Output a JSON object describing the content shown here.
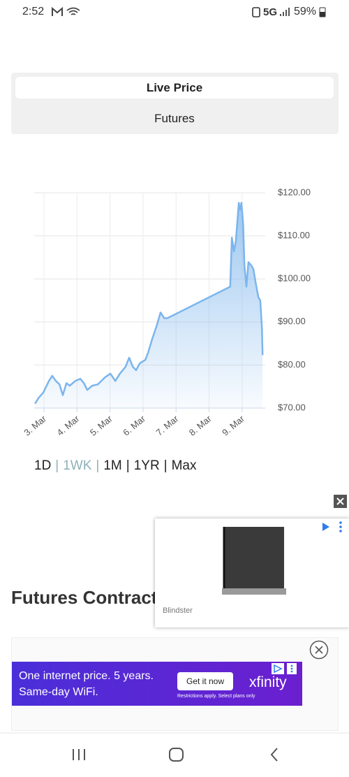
{
  "status_bar": {
    "time": "2:52",
    "network": "5G",
    "battery": "59%"
  },
  "tabs": [
    "Live Price",
    "Futures"
  ],
  "chart_data": {
    "type": "line",
    "area": true,
    "grid": true,
    "color": "#7cb5ec",
    "x": [
      2.73,
      2.83,
      2.98,
      3.15,
      3.25,
      3.36,
      3.47,
      3.57,
      3.68,
      3.78,
      3.95,
      4.1,
      4.21,
      4.31,
      4.46,
      4.63,
      4.84,
      5.01,
      5.16,
      5.3,
      5.47,
      5.58,
      5.69,
      5.79,
      5.9,
      6.07,
      6.15,
      6.28,
      6.42,
      6.53,
      6.64,
      6.74,
      8.64,
      8.69,
      8.75,
      8.81,
      8.9,
      8.94,
      8.98,
      9.03,
      9.07,
      9.13,
      9.19,
      9.28,
      9.34,
      9.41,
      9.49,
      9.55,
      9.6,
      9.62
    ],
    "values": [
      71,
      72.3,
      73.6,
      76.3,
      77.5,
      76.3,
      75.5,
      73,
      75.8,
      75.2,
      76.3,
      76.8,
      75.8,
      74.2,
      75.2,
      75.5,
      77.1,
      78,
      76.3,
      78,
      79.6,
      81.7,
      79.6,
      78.8,
      80.4,
      81.2,
      82.8,
      86.1,
      89.3,
      92.2,
      90.9,
      90.9,
      98.2,
      109.6,
      106.4,
      108.8,
      117.7,
      116.1,
      117.7,
      112.9,
      103.1,
      98.2,
      103.9,
      103.1,
      102.3,
      99.1,
      95.8,
      95,
      88.5,
      82.3
    ],
    "xlim": [
      2.7,
      9.7
    ],
    "xticks": [
      {
        "value": 3,
        "label": "3. Mar"
      },
      {
        "value": 4,
        "label": "4. Mar"
      },
      {
        "value": 5,
        "label": "5. Mar"
      },
      {
        "value": 6,
        "label": "6. Mar"
      },
      {
        "value": 7,
        "label": "7. Mar"
      },
      {
        "value": 8,
        "label": "8. Mar"
      },
      {
        "value": 9,
        "label": "9. Mar"
      }
    ],
    "ylim": [
      70,
      120
    ],
    "yticks": [
      {
        "value": 70,
        "label": "$70.00"
      },
      {
        "value": 80,
        "label": "$80.00"
      },
      {
        "value": 90,
        "label": "$90.00"
      },
      {
        "value": 100,
        "label": "$100.00"
      },
      {
        "value": 110,
        "label": "$110.00"
      },
      {
        "value": 120,
        "label": "$120.00"
      }
    ]
  },
  "ranges": [
    "1D",
    "1WK",
    "1M",
    "1YR",
    "Max"
  ],
  "range_separator": "|",
  "section_title": "Futures Contract",
  "video_ad": {
    "brand": "Blindster"
  },
  "banner_ad": {
    "line1": "One internet price. 5 years.",
    "line2": "Same-day WiFi.",
    "button": "Get it now",
    "brand": "xfinity",
    "disclaimer": "Restrictions apply. Select plans only"
  }
}
